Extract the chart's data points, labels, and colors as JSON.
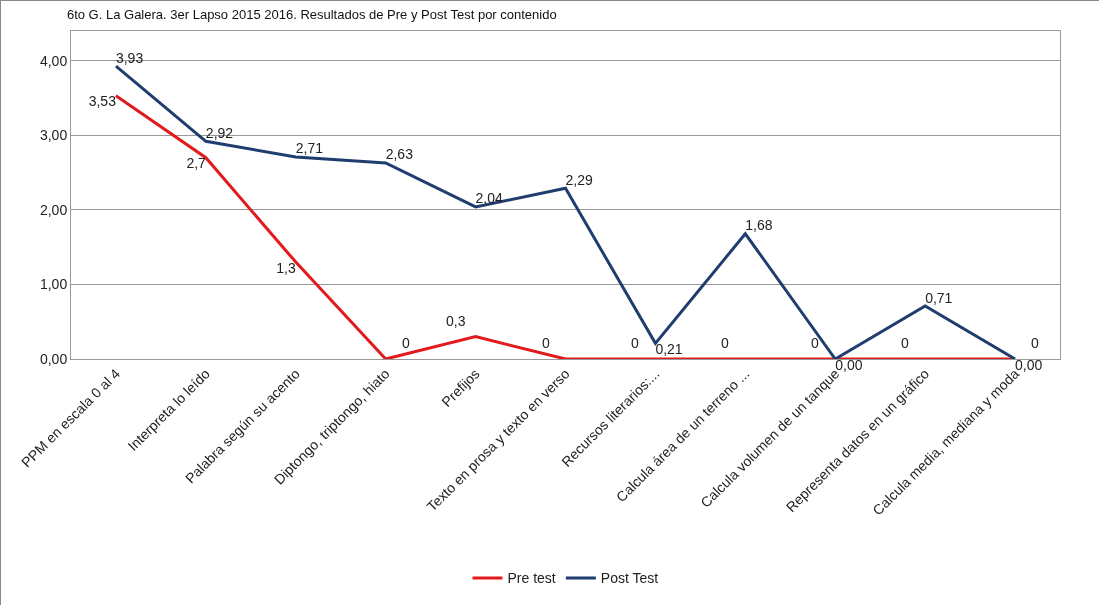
{
  "chart_data": {
    "type": "line",
    "title": "6to G. La Galera. 3er Lapso 2015 2016. Resultados de Pre y Post Test por contenido",
    "categories": [
      "PPM en escala 0 al 4",
      "Interpreta lo leído",
      "Palabra según su acento",
      "Diptongo, triptongo, hiato",
      "Prefijos",
      "Texto en prosa y texto en verso",
      "Recursos literarios:...",
      "Calcula área de un terreno ...",
      "Calcula volumen de un tanque",
      "Representa datos en un gráfico",
      "Calcula media, mediana y moda"
    ],
    "series": [
      {
        "name": "Pre test",
        "color": "#e31a1c",
        "values": [
          3.53,
          2.7,
          1.3,
          0,
          0.3,
          0,
          0,
          0,
          0,
          0,
          0
        ],
        "value_labels": [
          "3,53",
          "2,7",
          "1,3",
          "0",
          "0,3",
          "0",
          "0",
          "0",
          "0",
          "0",
          "0"
        ]
      },
      {
        "name": "Post Test",
        "color": "#1f3d6e",
        "values": [
          3.93,
          2.92,
          2.71,
          2.63,
          2.04,
          2.29,
          0.21,
          1.68,
          0,
          0.71,
          0
        ],
        "value_labels": [
          "3,93",
          "2,92",
          "2,71",
          "2,63",
          "2,04",
          "2,29",
          "0,21",
          "1,68",
          "0,00",
          "0,71",
          "0,00"
        ]
      }
    ],
    "ylim": [
      0,
      4.4
    ],
    "yticks": [
      {
        "value": 0,
        "label": "0,00"
      },
      {
        "value": 1,
        "label": "1,00"
      },
      {
        "value": 2,
        "label": "2,00"
      },
      {
        "value": 3,
        "label": "3,00"
      },
      {
        "value": 4,
        "label": "4,00"
      }
    ],
    "grid": "y",
    "legend": "bottom",
    "marker": "none",
    "line_style": "solid"
  }
}
